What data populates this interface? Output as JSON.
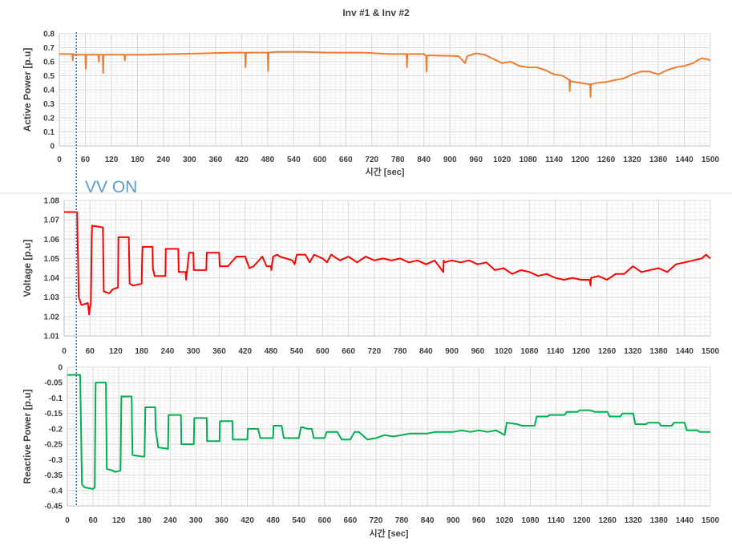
{
  "figure": {
    "title": "Inv #1 & Inv #2",
    "annotation": "VV ON",
    "annotation_x": 30,
    "annotation_color": "#2e75b6"
  },
  "chart_data": [
    {
      "type": "line",
      "ylabel": "Active Power [p.u]",
      "xlabel": "시간 [sec]",
      "xlim": [
        0,
        1500
      ],
      "ylim": [
        0,
        0.8
      ],
      "xticks": [
        0,
        60,
        120,
        180,
        240,
        300,
        360,
        420,
        480,
        540,
        600,
        660,
        720,
        780,
        840,
        900,
        960,
        1020,
        1080,
        1140,
        1200,
        1260,
        1320,
        1380,
        1440,
        1500
      ],
      "yticks": [
        0,
        0.1,
        0.2,
        0.3,
        0.4,
        0.5,
        0.6,
        0.7,
        0.8
      ],
      "ytick_labels": [
        "0",
        "0.1",
        "0.2",
        "0.3",
        "0.4",
        "0.5",
        "0.6",
        "0.7",
        "0.8"
      ],
      "grid": true,
      "series": [
        {
          "color": "#ed7d31",
          "x": [
            0,
            30,
            31,
            32,
            33,
            60,
            61,
            62,
            63,
            90,
            91,
            92,
            100,
            101,
            102,
            150,
            151,
            152,
            200,
            400,
            428,
            429,
            430,
            431,
            480,
            481,
            482,
            483,
            500,
            560,
            620,
            700,
            760,
            800,
            801,
            802,
            803,
            840,
            845,
            846,
            847,
            848,
            860,
            920,
            935,
            940,
            960,
            980,
            1000,
            1020,
            1040,
            1060,
            1080,
            1100,
            1120,
            1140,
            1160,
            1175,
            1176,
            1177,
            1178,
            1200,
            1220,
            1223,
            1224,
            1225,
            1226,
            1240,
            1260,
            1280,
            1300,
            1320,
            1340,
            1360,
            1380,
            1400,
            1420,
            1440,
            1460,
            1470,
            1480,
            1490,
            1500
          ],
          "y": [
            0.655,
            0.655,
            0.61,
            0.655,
            0.65,
            0.65,
            0.55,
            0.65,
            0.65,
            0.65,
            0.6,
            0.65,
            0.65,
            0.52,
            0.65,
            0.65,
            0.61,
            0.65,
            0.65,
            0.665,
            0.665,
            0.56,
            0.665,
            0.665,
            0.665,
            0.535,
            0.665,
            0.665,
            0.67,
            0.67,
            0.665,
            0.665,
            0.655,
            0.655,
            0.56,
            0.655,
            0.655,
            0.655,
            0.64,
            0.53,
            0.64,
            0.645,
            0.645,
            0.64,
            0.59,
            0.64,
            0.66,
            0.65,
            0.62,
            0.59,
            0.6,
            0.57,
            0.56,
            0.56,
            0.54,
            0.51,
            0.5,
            0.47,
            0.39,
            0.47,
            0.46,
            0.45,
            0.44,
            0.44,
            0.35,
            0.44,
            0.44,
            0.45,
            0.455,
            0.47,
            0.48,
            0.51,
            0.53,
            0.53,
            0.51,
            0.54,
            0.56,
            0.57,
            0.59,
            0.61,
            0.625,
            0.62,
            0.61
          ]
        }
      ]
    },
    {
      "type": "line",
      "ylabel": "Voltage [p.u]",
      "xlabel": "",
      "xlim": [
        0,
        1500
      ],
      "ylim": [
        1.01,
        1.08
      ],
      "xticks": [
        0,
        60,
        120,
        180,
        240,
        300,
        360,
        420,
        480,
        540,
        600,
        660,
        720,
        780,
        840,
        900,
        960,
        1020,
        1080,
        1140,
        1200,
        1260,
        1320,
        1380,
        1440,
        1500
      ],
      "yticks": [
        1.01,
        1.02,
        1.03,
        1.04,
        1.05,
        1.06,
        1.07,
        1.08
      ],
      "ytick_labels": [
        "1.01",
        "1.02",
        "1.03",
        "1.04",
        "1.05",
        "1.06",
        "1.07",
        "1.08"
      ],
      "grid": true,
      "series": [
        {
          "color": "#ff0000",
          "x": [
            0,
            30,
            34,
            40,
            55,
            58,
            60,
            62,
            64,
            65,
            90,
            91,
            92,
            105,
            112,
            125,
            126,
            150,
            151,
            152,
            160,
            180,
            181,
            182,
            205,
            206,
            210,
            235,
            236,
            250,
            265,
            266,
            282,
            283,
            290,
            300,
            301,
            330,
            331,
            360,
            361,
            380,
            400,
            420,
            430,
            440,
            460,
            470,
            480,
            481,
            485,
            495,
            500,
            530,
            535,
            540,
            560,
            570,
            580,
            600,
            610,
            620,
            640,
            660,
            680,
            700,
            720,
            740,
            760,
            780,
            800,
            820,
            840,
            860,
            880,
            881,
            882,
            900,
            920,
            940,
            960,
            980,
            1000,
            1020,
            1040,
            1060,
            1080,
            1100,
            1120,
            1140,
            1160,
            1180,
            1200,
            1220,
            1222,
            1223,
            1240,
            1260,
            1280,
            1300,
            1320,
            1340,
            1360,
            1380,
            1400,
            1420,
            1440,
            1460,
            1480,
            1490,
            1500
          ],
          "y": [
            1.074,
            1.074,
            1.03,
            1.026,
            1.027,
            1.021,
            1.025,
            1.026,
            1.06,
            1.067,
            1.066,
            1.05,
            1.033,
            1.032,
            1.034,
            1.035,
            1.061,
            1.061,
            1.05,
            1.037,
            1.036,
            1.037,
            1.05,
            1.056,
            1.056,
            1.045,
            1.041,
            1.041,
            1.055,
            1.055,
            1.055,
            1.043,
            1.043,
            1.039,
            1.053,
            1.053,
            1.044,
            1.044,
            1.053,
            1.053,
            1.046,
            1.046,
            1.051,
            1.051,
            1.045,
            1.046,
            1.051,
            1.046,
            1.046,
            1.044,
            1.051,
            1.052,
            1.051,
            1.049,
            1.047,
            1.052,
            1.052,
            1.048,
            1.052,
            1.05,
            1.048,
            1.052,
            1.049,
            1.051,
            1.048,
            1.051,
            1.049,
            1.05,
            1.049,
            1.05,
            1.048,
            1.049,
            1.047,
            1.049,
            1.043,
            1.049,
            1.048,
            1.049,
            1.048,
            1.049,
            1.047,
            1.048,
            1.044,
            1.045,
            1.042,
            1.044,
            1.043,
            1.041,
            1.042,
            1.04,
            1.039,
            1.04,
            1.039,
            1.039,
            1.036,
            1.04,
            1.041,
            1.039,
            1.042,
            1.042,
            1.046,
            1.043,
            1.044,
            1.045,
            1.043,
            1.047,
            1.048,
            1.049,
            1.05,
            1.052,
            1.05
          ]
        }
      ]
    },
    {
      "type": "line",
      "ylabel": "Reactive Power [p.u]",
      "xlabel": "시간 [sec]",
      "xlim": [
        0,
        1500
      ],
      "ylim": [
        -0.45,
        0
      ],
      "xticks": [
        0,
        60,
        120,
        180,
        240,
        300,
        360,
        420,
        480,
        540,
        600,
        660,
        720,
        780,
        840,
        900,
        960,
        1020,
        1080,
        1140,
        1200,
        1260,
        1320,
        1380,
        1440,
        1500
      ],
      "yticks": [
        -0.45,
        -0.4,
        -0.35,
        -0.3,
        -0.25,
        -0.2,
        -0.15,
        -0.1,
        -0.05,
        0
      ],
      "ytick_labels": [
        "-0.45",
        "-0.4",
        "-0.35",
        "-0.3",
        "-0.25",
        "-0.2",
        "-0.15",
        "-0.1",
        "-0.05",
        "0"
      ],
      "grid": true,
      "series": [
        {
          "color": "#00b050",
          "x": [
            0,
            30,
            34,
            40,
            60,
            64,
            66,
            90,
            91,
            92,
            105,
            112,
            124,
            126,
            150,
            151,
            152,
            175,
            180,
            181,
            182,
            205,
            206,
            212,
            235,
            236,
            250,
            265,
            266,
            275,
            295,
            296,
            325,
            326,
            345,
            355,
            356,
            385,
            386,
            410,
            420,
            421,
            440,
            445,
            450,
            460,
            480,
            481,
            485,
            500,
            505,
            510,
            540,
            545,
            550,
            560,
            570,
            575,
            600,
            605,
            610,
            630,
            640,
            660,
            670,
            680,
            700,
            720,
            740,
            760,
            780,
            800,
            820,
            840,
            860,
            880,
            900,
            920,
            940,
            960,
            980,
            1000,
            1020,
            1025,
            1050,
            1060,
            1090,
            1095,
            1120,
            1125,
            1160,
            1165,
            1190,
            1195,
            1220,
            1230,
            1260,
            1265,
            1290,
            1295,
            1320,
            1325,
            1350,
            1355,
            1380,
            1385,
            1410,
            1415,
            1440,
            1445,
            1470,
            1475,
            1500
          ],
          "y": [
            -0.025,
            -0.025,
            -0.38,
            -0.39,
            -0.395,
            -0.39,
            -0.05,
            -0.05,
            -0.2,
            -0.33,
            -0.335,
            -0.34,
            -0.335,
            -0.095,
            -0.095,
            -0.2,
            -0.285,
            -0.29,
            -0.29,
            -0.2,
            -0.13,
            -0.13,
            -0.2,
            -0.26,
            -0.265,
            -0.155,
            -0.155,
            -0.155,
            -0.25,
            -0.25,
            -0.25,
            -0.165,
            -0.165,
            -0.24,
            -0.24,
            -0.24,
            -0.175,
            -0.175,
            -0.235,
            -0.235,
            -0.235,
            -0.2,
            -0.2,
            -0.2,
            -0.23,
            -0.23,
            -0.23,
            -0.19,
            -0.19,
            -0.19,
            -0.23,
            -0.23,
            -0.23,
            -0.195,
            -0.195,
            -0.2,
            -0.2,
            -0.23,
            -0.23,
            -0.21,
            -0.21,
            -0.21,
            -0.235,
            -0.235,
            -0.21,
            -0.21,
            -0.235,
            -0.23,
            -0.22,
            -0.225,
            -0.22,
            -0.215,
            -0.215,
            -0.215,
            -0.21,
            -0.21,
            -0.21,
            -0.205,
            -0.21,
            -0.205,
            -0.21,
            -0.205,
            -0.22,
            -0.18,
            -0.185,
            -0.19,
            -0.19,
            -0.16,
            -0.16,
            -0.155,
            -0.155,
            -0.145,
            -0.145,
            -0.14,
            -0.14,
            -0.145,
            -0.145,
            -0.16,
            -0.16,
            -0.15,
            -0.15,
            -0.185,
            -0.185,
            -0.18,
            -0.18,
            -0.19,
            -0.19,
            -0.18,
            -0.18,
            -0.205,
            -0.205,
            -0.21,
            -0.21
          ]
        }
      ]
    }
  ]
}
